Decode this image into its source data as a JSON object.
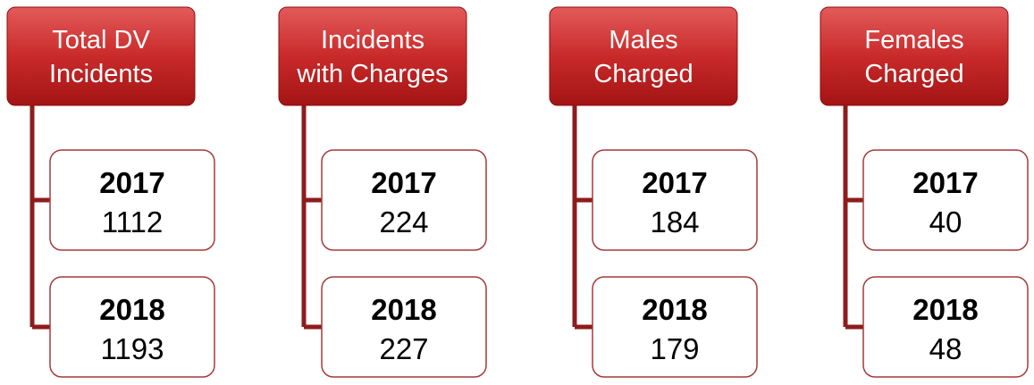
{
  "columns": [
    {
      "header": [
        "Total DV",
        "Incidents"
      ],
      "items": [
        {
          "year": "2017",
          "value": "1112"
        },
        {
          "year": "2018",
          "value": "1193"
        }
      ]
    },
    {
      "header": [
        "Incidents",
        "with Charges"
      ],
      "items": [
        {
          "year": "2017",
          "value": "224"
        },
        {
          "year": "2018",
          "value": "227"
        }
      ]
    },
    {
      "header": [
        "Males",
        "Charged"
      ],
      "items": [
        {
          "year": "2017",
          "value": "184"
        },
        {
          "year": "2018",
          "value": "179"
        }
      ]
    },
    {
      "header": [
        "Females",
        "Charged"
      ],
      "items": [
        {
          "year": "2017",
          "value": "40"
        },
        {
          "year": "2018",
          "value": "48"
        }
      ]
    }
  ]
}
